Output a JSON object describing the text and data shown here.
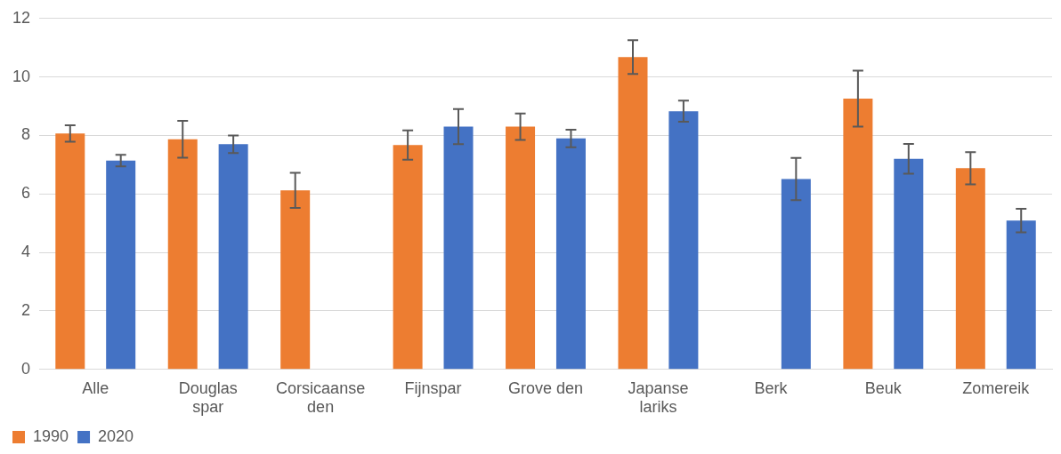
{
  "chart_data": {
    "type": "bar",
    "categories": [
      "Alle",
      "Douglas spar",
      "Corsicaanse den",
      "Fijnspar",
      "Grove den",
      "Japanse lariks",
      "Berk",
      "Beuk",
      "Zomereik"
    ],
    "series": [
      {
        "name": "1990",
        "color": "#ed7d31",
        "values": [
          8.07,
          7.87,
          6.12,
          7.67,
          8.3,
          10.68,
          null,
          9.26,
          6.88
        ],
        "errors": [
          0.28,
          0.63,
          0.6,
          0.5,
          0.45,
          0.58,
          null,
          0.96,
          0.55
        ]
      },
      {
        "name": "2020",
        "color": "#4472c4",
        "values": [
          7.14,
          7.7,
          null,
          8.3,
          7.9,
          8.83,
          6.51,
          7.2,
          5.09
        ],
        "errors": [
          0.2,
          0.3,
          null,
          0.6,
          0.3,
          0.36,
          0.72,
          0.51,
          0.4
        ]
      }
    ],
    "ylim": [
      0,
      12
    ],
    "yticks": [
      0,
      2,
      4,
      6,
      8,
      10,
      12
    ],
    "grid": "y",
    "legend": "bottom left"
  }
}
